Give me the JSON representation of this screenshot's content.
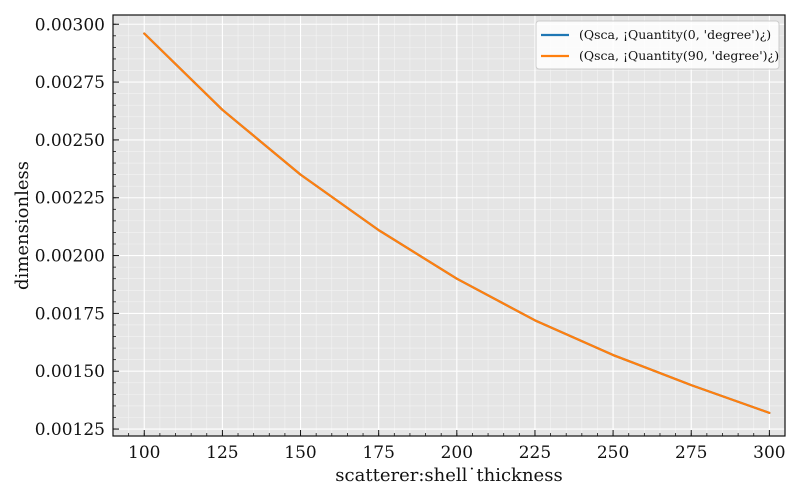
{
  "chart_data": {
    "type": "line",
    "xlabel": "scatterer:shell˙thickness",
    "ylabel": "dimensionless",
    "xlim": [
      90,
      305
    ],
    "ylim": [
      0.00122,
      0.00304
    ],
    "x_ticks": [
      100,
      125,
      150,
      175,
      200,
      225,
      250,
      275,
      300
    ],
    "x_tick_labels": [
      "100",
      "125",
      "150",
      "175",
      "200",
      "225",
      "250",
      "275",
      "300"
    ],
    "y_ticks": [
      0.00125,
      0.0015,
      0.00175,
      0.002,
      0.00225,
      0.0025,
      0.00275,
      0.003
    ],
    "y_tick_labels": [
      "0.00125",
      "0.00150",
      "0.00175",
      "0.00200",
      "0.00225",
      "0.00250",
      "0.00275",
      "0.00300"
    ],
    "grid": true,
    "legend_position": "top-right",
    "x": [
      100,
      125,
      150,
      175,
      200,
      225,
      250,
      275,
      300
    ],
    "series": [
      {
        "name": "(Qsca, ¡Quantity(0, 'degree')¿)",
        "color": "#1f77b4",
        "values": [
          0.00296,
          0.00263,
          0.00235,
          0.00211,
          0.0019,
          0.00172,
          0.00157,
          0.00144,
          0.00132
        ]
      },
      {
        "name": "(Qsca, ¡Quantity(90, 'degree')¿)",
        "color": "#ff7f0e",
        "values": [
          0.00296,
          0.00263,
          0.00235,
          0.00211,
          0.0019,
          0.00172,
          0.00157,
          0.00144,
          0.00132
        ]
      }
    ]
  }
}
